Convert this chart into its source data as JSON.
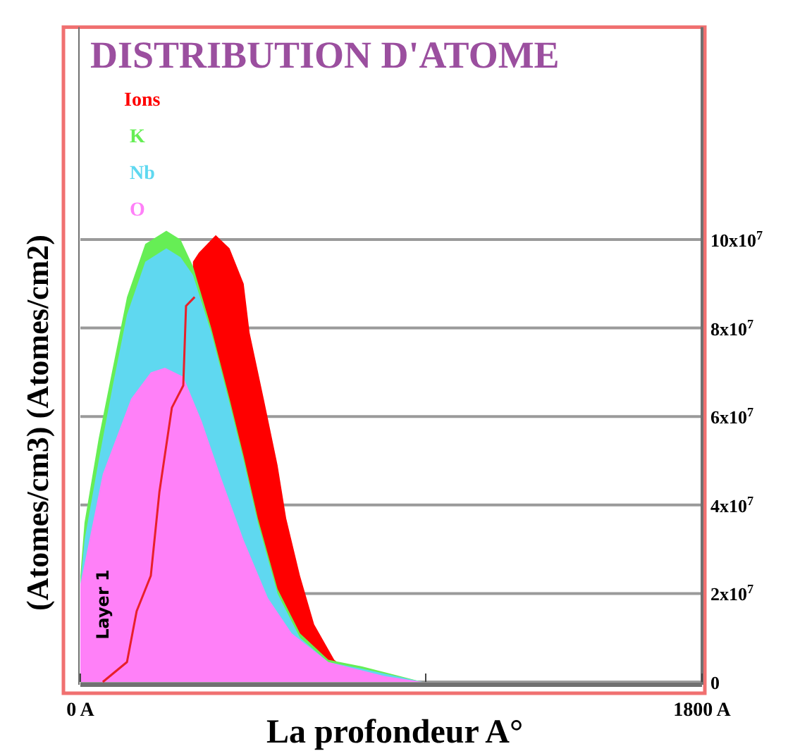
{
  "chart_data": {
    "type": "area",
    "title": "DISTRIBUTION D'ATOME",
    "xlabel": "La profondeur A°",
    "ylabel": "(Atomes/cm3) (Atomes/cm2)",
    "xlim": [
      0,
      1800
    ],
    "xticks": [
      {
        "value": 0,
        "label": "0 A"
      },
      {
        "value": 1000,
        "label": null
      },
      {
        "value": 1800,
        "label": "1800 A"
      }
    ],
    "ylim": [
      0,
      148000000
    ],
    "yticks": [
      {
        "value": 0,
        "label": "0"
      },
      {
        "value": 20000000,
        "label": "2x10$^{7}$"
      },
      {
        "value": 40000000,
        "label": "4x10$^{7}$"
      },
      {
        "value": 60000000,
        "label": "6x10$^{7}$"
      },
      {
        "value": 80000000,
        "label": "8x10$^{7}$"
      },
      {
        "value": 100000000,
        "label": "10x10$^{7}$"
      }
    ],
    "grid": "y",
    "legend": "top left",
    "annotations": [
      "Layer 1"
    ],
    "series": [
      {
        "name": "Ions",
        "color": "#ff0000",
        "x": [
          326,
          343,
          392,
          432,
          473,
          490,
          531,
          571,
          596,
          636,
          677,
          735,
          816
        ],
        "values": [
          95000000,
          97000000,
          101000000,
          98000000,
          90000000,
          79000000,
          64000000,
          49000000,
          37000000,
          24000000,
          13000000,
          5000000,
          0
        ]
      },
      {
        "name": "K",
        "color": "#66ee55",
        "x": [
          0,
          12,
          53,
          94,
          135,
          188,
          249,
          290,
          326,
          379,
          432,
          473,
          514,
          571,
          636,
          718,
          816,
          991
        ],
        "values": [
          24000000,
          36000000,
          55000000,
          71000000,
          87000000,
          99000000,
          102000000,
          100000000,
          94000000,
          80000000,
          64000000,
          51000000,
          37000000,
          21000000,
          11000000,
          5000000,
          3500000,
          0
        ]
      },
      {
        "name": "Nb",
        "color": "#5fd8f0",
        "x": [
          0,
          12,
          53,
          94,
          135,
          188,
          249,
          290,
          326,
          379,
          432,
          473,
          514,
          571,
          636,
          718,
          816,
          991
        ],
        "values": [
          22000000,
          32000000,
          50000000,
          67000000,
          83000000,
          95000000,
          98000000,
          96000000,
          92000000,
          79000000,
          63000000,
          50000000,
          36000000,
          20000000,
          10000000,
          4500000,
          3000000,
          0
        ]
      },
      {
        "name": "O",
        "color": "#ff80f8",
        "x": [
          0,
          65,
          147,
          204,
          245,
          298,
          351,
          408,
          473,
          543,
          612,
          718,
          882,
          991
        ],
        "values": [
          22000000,
          47000000,
          64000000,
          70000000,
          71000000,
          69000000,
          59000000,
          46000000,
          32000000,
          19000000,
          11000000,
          4500000,
          1300000,
          0
        ]
      },
      {
        "type": "line",
        "color": "#e8202a",
        "x": [
          65,
          135,
          163,
          204,
          229,
          265,
          298,
          306,
          331
        ],
        "values": [
          0,
          4500000,
          16000000,
          24000000,
          43000000,
          62000000,
          67000000,
          85000000,
          87000000
        ]
      }
    ]
  }
}
